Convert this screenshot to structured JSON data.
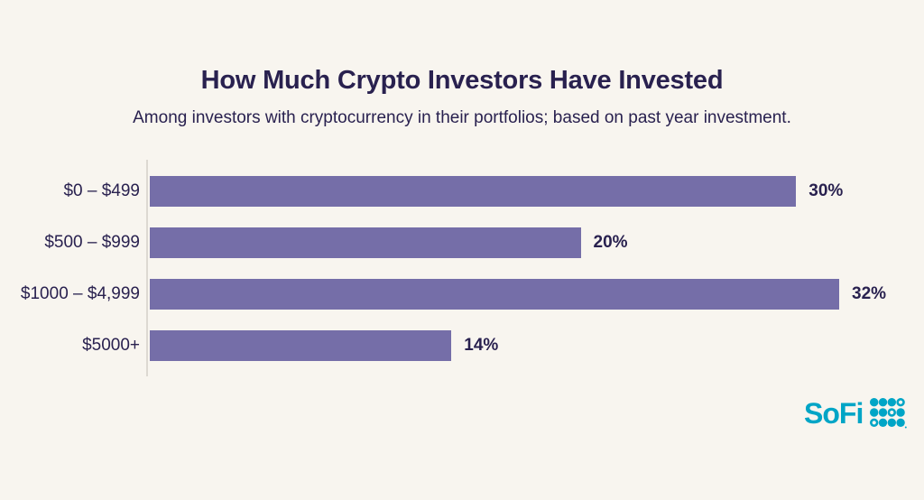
{
  "page": {
    "background_color": "#F8F5EF"
  },
  "header": {
    "title": "How Much Crypto Investors Have Invested",
    "subtitle": "Among investors with cryptocurrency in their portfolios; based on past year investment."
  },
  "chart_data": {
    "type": "bar",
    "orientation": "horizontal",
    "title": "How Much Crypto Investors Have Invested",
    "subtitle": "Among investors with cryptocurrency in their portfolios; based on past year investment.",
    "categories": [
      "$0 – $499",
      "$500 – $999",
      "$1000 – $4,999",
      "$5000+"
    ],
    "values": [
      30,
      20,
      32,
      14
    ],
    "value_labels": [
      "30%",
      "20%",
      "32%",
      "14%"
    ],
    "xlabel": "",
    "ylabel": "",
    "xlim": [
      0,
      32
    ],
    "grid": false,
    "legend": false,
    "bar_color": "#756EA8",
    "text_color": "#29214F",
    "axis_line_color": "#DDD9D2"
  },
  "branding": {
    "logo_text": "SoFi",
    "logo_color": "#00A5C6",
    "logo_mark": "sofi-dot-grid",
    "dot_pattern": [
      [
        1,
        1,
        1,
        0
      ],
      [
        1,
        1,
        0,
        1
      ],
      [
        0,
        1,
        1,
        1
      ]
    ],
    "registered_mark": "®"
  }
}
